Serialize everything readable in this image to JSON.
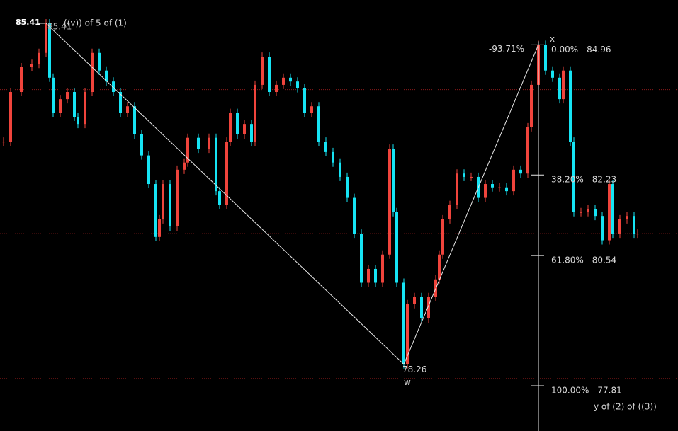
{
  "chart_data": {
    "type": "price-path",
    "marker_label": "85.41",
    "up_color": "#f0443c",
    "down_color": "#16e4f4",
    "xlim": [
      0,
      191.4
    ],
    "ylim": [
      76.86,
      85.9
    ],
    "x": [
      1,
      3,
      6,
      9,
      11,
      13,
      14,
      15,
      17,
      19,
      21,
      22,
      24,
      26,
      28,
      30,
      32,
      34,
      36,
      38,
      40,
      42,
      44,
      45,
      46,
      48,
      50,
      52,
      53,
      56,
      59,
      61,
      62,
      64,
      65,
      67,
      69,
      71,
      72,
      74,
      76,
      78,
      80,
      82,
      84,
      86,
      88,
      90,
      92,
      94,
      96,
      98,
      100,
      102,
      104,
      106,
      108,
      110,
      111,
      112,
      114,
      115,
      117,
      119,
      121,
      123,
      124,
      125,
      127,
      129,
      131,
      133,
      135,
      137,
      139,
      141,
      143,
      145,
      147,
      149,
      150,
      152,
      154,
      156,
      158,
      159,
      161,
      162,
      164,
      166,
      168,
      170,
      172,
      173,
      175,
      177,
      179,
      180
    ],
    "series": [
      {
        "values": [
          82.93,
          83.97,
          84.49,
          84.56,
          84.79,
          85.41,
          84.27,
          83.53,
          83.82,
          83.97,
          83.45,
          83.3,
          83.97,
          84.79,
          84.42,
          84.19,
          83.97,
          83.53,
          83.67,
          83.08,
          82.64,
          82.04,
          80.93,
          81.3,
          82.04,
          81.15,
          82.34,
          82.49,
          83.01,
          82.78,
          83.01,
          81.89,
          81.6,
          82.93,
          83.53,
          83.08,
          83.3,
          82.93,
          84.12,
          84.71,
          83.97,
          84.12,
          84.27,
          84.19,
          84.05,
          83.53,
          83.67,
          82.93,
          82.71,
          82.49,
          82.19,
          81.75,
          81.0,
          79.97,
          80.26,
          79.97,
          80.56,
          82.78,
          81.45,
          79.97,
          78.26,
          79.52,
          79.67,
          79.22,
          79.67,
          80.04,
          80.56,
          81.3,
          81.6,
          82.26,
          82.19,
          82.19,
          81.75,
          82.04,
          81.97,
          81.97,
          81.89,
          82.34,
          82.26,
          83.23,
          84.12,
          84.96,
          84.42,
          84.27,
          83.82,
          84.42,
          82.93,
          81.45,
          81.45,
          81.52,
          81.37,
          80.86,
          82.04,
          81.0,
          81.3,
          81.37,
          81.0,
          81.0
        ]
      }
    ],
    "hlines": [
      84.02,
      81.0,
      77.96
    ],
    "hline_color": "#8b1a1a",
    "wave": [
      {
        "label": "85.41",
        "value": 85.41,
        "note": "((v)) of 5 of (1)"
      },
      {
        "label": "78.26",
        "value": 78.26,
        "note": "w"
      },
      {
        "label": "x",
        "value": 84.96,
        "note": "-93.71%"
      }
    ],
    "fib": [
      {
        "ratio": {
          "value": 0,
          "label": "0.00%"
        },
        "price": 84.96
      },
      {
        "ratio": {
          "value": 38.2,
          "label": "38.20%"
        },
        "price": 82.23
      },
      {
        "ratio": {
          "value": 61.8,
          "label": "61.80%"
        },
        "price": 80.54
      },
      {
        "ratio": {
          "value": 100,
          "label": "100.00%"
        },
        "price": 77.81
      }
    ],
    "end_label": "y of (2) of ((3))"
  }
}
